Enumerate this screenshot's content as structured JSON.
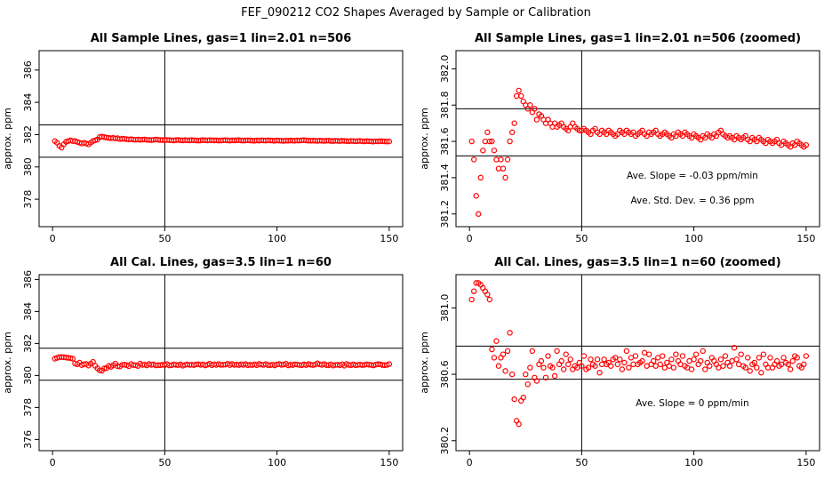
{
  "title": "FEF_090212  CO2 Shapes Averaged by Sample or Calibration",
  "chart_data": [
    {
      "type": "scatter",
      "title": "All Sample Lines, gas=1 lin=2.01 n=506",
      "xlabel": "",
      "ylabel": "approx. ppm",
      "xlim": [
        -6,
        156
      ],
      "ylim": [
        376.3,
        387.2
      ],
      "xticks": [
        0,
        50,
        100,
        150
      ],
      "yticks": [
        378,
        380,
        382,
        384,
        386
      ],
      "vline": 50,
      "hlines": [
        380.6,
        382.6
      ],
      "marker_color": "#ff0000",
      "annotations": [],
      "x": [
        1,
        2,
        3,
        4,
        5,
        6,
        7,
        8,
        9,
        10,
        11,
        12,
        13,
        14,
        15,
        16,
        17,
        18,
        19,
        20,
        21,
        22,
        23,
        24,
        25,
        26,
        27,
        28,
        29,
        30,
        31,
        32,
        33,
        34,
        35,
        36,
        37,
        38,
        39,
        40,
        41,
        42,
        43,
        44,
        45,
        46,
        47,
        48,
        49,
        50,
        51,
        52,
        53,
        54,
        55,
        56,
        57,
        58,
        59,
        60,
        61,
        62,
        63,
        64,
        65,
        66,
        67,
        68,
        69,
        70,
        71,
        72,
        73,
        74,
        75,
        76,
        77,
        78,
        79,
        80,
        81,
        82,
        83,
        84,
        85,
        86,
        87,
        88,
        89,
        90,
        91,
        92,
        93,
        94,
        95,
        96,
        97,
        98,
        99,
        100,
        101,
        102,
        103,
        104,
        105,
        106,
        107,
        108,
        109,
        110,
        111,
        112,
        113,
        114,
        115,
        116,
        117,
        118,
        119,
        120,
        121,
        122,
        123,
        124,
        125,
        126,
        127,
        128,
        129,
        130,
        131,
        132,
        133,
        134,
        135,
        136,
        137,
        138,
        139,
        140,
        141,
        142,
        143,
        144,
        145,
        146,
        147,
        148,
        149,
        150
      ],
      "y": [
        381.6,
        381.5,
        381.3,
        381.2,
        381.4,
        381.55,
        381.6,
        381.65,
        381.6,
        381.6,
        381.55,
        381.5,
        381.45,
        381.5,
        381.45,
        381.4,
        381.5,
        381.6,
        381.65,
        381.7,
        381.85,
        381.88,
        381.85,
        381.82,
        381.8,
        381.78,
        381.8,
        381.76,
        381.78,
        381.72,
        381.75,
        381.74,
        381.72,
        381.7,
        381.72,
        381.7,
        381.68,
        381.7,
        381.68,
        381.69,
        381.7,
        381.68,
        381.67,
        381.66,
        381.68,
        381.7,
        381.68,
        381.67,
        381.66,
        381.66,
        381.67,
        381.66,
        381.65,
        381.64,
        381.66,
        381.67,
        381.65,
        381.64,
        381.66,
        381.65,
        381.64,
        381.66,
        381.65,
        381.64,
        381.63,
        381.64,
        381.66,
        381.65,
        381.64,
        381.66,
        381.65,
        381.64,
        381.65,
        381.63,
        381.64,
        381.65,
        381.66,
        381.64,
        381.63,
        381.65,
        381.64,
        381.65,
        381.66,
        381.64,
        381.63,
        381.64,
        381.65,
        381.64,
        381.63,
        381.62,
        381.64,
        381.63,
        381.65,
        381.64,
        381.63,
        381.65,
        381.64,
        381.63,
        381.62,
        381.64,
        381.63,
        381.62,
        381.61,
        381.63,
        381.62,
        381.64,
        381.63,
        381.62,
        381.64,
        381.63,
        381.65,
        381.66,
        381.64,
        381.63,
        381.62,
        381.63,
        381.62,
        381.61,
        381.63,
        381.62,
        381.61,
        381.62,
        381.63,
        381.61,
        381.6,
        381.62,
        381.61,
        381.6,
        381.62,
        381.61,
        381.6,
        381.59,
        381.61,
        381.6,
        381.59,
        381.6,
        381.61,
        381.59,
        381.58,
        381.6,
        381.59,
        381.58,
        381.57,
        381.59,
        381.58,
        381.6,
        381.59,
        381.58,
        381.57,
        381.58
      ]
    },
    {
      "type": "scatter",
      "title": "All Sample Lines, gas=1 lin=2.01 n=506 (zoomed)",
      "xlabel": "",
      "ylabel": "approx. ppm",
      "xlim": [
        -6,
        156
      ],
      "ylim": [
        381.13,
        382.1
      ],
      "xticks": [
        0,
        50,
        100,
        150
      ],
      "yticks": [
        381.2,
        381.4,
        381.6,
        381.8,
        382.0
      ],
      "ytick_labels": [
        "381.2",
        "381.4",
        "381.6",
        "381.8",
        "382.0"
      ],
      "vline": 50,
      "hlines": [
        381.52,
        381.78
      ],
      "marker_color": "#ff0000",
      "annotations": [
        "Ave. Slope = -0.03  ppm/min",
        "Ave. Std. Dev. = 0.36  ppm"
      ],
      "x": [
        1,
        2,
        3,
        4,
        5,
        6,
        7,
        8,
        9,
        10,
        11,
        12,
        13,
        14,
        15,
        16,
        17,
        18,
        19,
        20,
        21,
        22,
        23,
        24,
        25,
        26,
        27,
        28,
        29,
        30,
        31,
        32,
        33,
        34,
        35,
        36,
        37,
        38,
        39,
        40,
        41,
        42,
        43,
        44,
        45,
        46,
        47,
        48,
        49,
        50,
        51,
        52,
        53,
        54,
        55,
        56,
        57,
        58,
        59,
        60,
        61,
        62,
        63,
        64,
        65,
        66,
        67,
        68,
        69,
        70,
        71,
        72,
        73,
        74,
        75,
        76,
        77,
        78,
        79,
        80,
        81,
        82,
        83,
        84,
        85,
        86,
        87,
        88,
        89,
        90,
        91,
        92,
        93,
        94,
        95,
        96,
        97,
        98,
        99,
        100,
        101,
        102,
        103,
        104,
        105,
        106,
        107,
        108,
        109,
        110,
        111,
        112,
        113,
        114,
        115,
        116,
        117,
        118,
        119,
        120,
        121,
        122,
        123,
        124,
        125,
        126,
        127,
        128,
        129,
        130,
        131,
        132,
        133,
        134,
        135,
        136,
        137,
        138,
        139,
        140,
        141,
        142,
        143,
        144,
        145,
        146,
        147,
        148,
        149,
        150
      ],
      "y": [
        381.6,
        381.5,
        381.3,
        381.2,
        381.4,
        381.55,
        381.6,
        381.65,
        381.6,
        381.6,
        381.55,
        381.5,
        381.45,
        381.5,
        381.45,
        381.4,
        381.5,
        381.6,
        381.65,
        381.7,
        381.85,
        381.88,
        381.85,
        381.82,
        381.8,
        381.78,
        381.8,
        381.76,
        381.78,
        381.72,
        381.75,
        381.74,
        381.72,
        381.7,
        381.72,
        381.7,
        381.68,
        381.7,
        381.68,
        381.69,
        381.7,
        381.68,
        381.67,
        381.66,
        381.68,
        381.7,
        381.68,
        381.67,
        381.66,
        381.66,
        381.67,
        381.66,
        381.65,
        381.64,
        381.66,
        381.67,
        381.65,
        381.64,
        381.66,
        381.65,
        381.64,
        381.66,
        381.65,
        381.64,
        381.63,
        381.64,
        381.66,
        381.65,
        381.64,
        381.66,
        381.65,
        381.64,
        381.65,
        381.63,
        381.64,
        381.65,
        381.66,
        381.64,
        381.63,
        381.65,
        381.64,
        381.65,
        381.66,
        381.64,
        381.63,
        381.64,
        381.65,
        381.64,
        381.63,
        381.62,
        381.64,
        381.63,
        381.65,
        381.64,
        381.63,
        381.65,
        381.64,
        381.63,
        381.62,
        381.64,
        381.63,
        381.62,
        381.61,
        381.63,
        381.62,
        381.64,
        381.63,
        381.62,
        381.64,
        381.63,
        381.65,
        381.66,
        381.64,
        381.63,
        381.62,
        381.63,
        381.62,
        381.61,
        381.63,
        381.62,
        381.61,
        381.62,
        381.63,
        381.61,
        381.6,
        381.62,
        381.61,
        381.6,
        381.62,
        381.61,
        381.6,
        381.59,
        381.61,
        381.6,
        381.59,
        381.6,
        381.61,
        381.59,
        381.58,
        381.6,
        381.59,
        381.58,
        381.57,
        381.59,
        381.58,
        381.6,
        381.59,
        381.58,
        381.57,
        381.58
      ]
    },
    {
      "type": "scatter",
      "title": "All Cal. Lines, gas=3.5 lin=1 n=60",
      "xlabel": "",
      "ylabel": "approx. ppm",
      "xlim": [
        -6,
        156
      ],
      "ylim": [
        375.3,
        386.3
      ],
      "xticks": [
        0,
        50,
        100,
        150
      ],
      "yticks": [
        376,
        378,
        380,
        382,
        384,
        386
      ],
      "vline": 50,
      "hlines": [
        379.7,
        381.7
      ],
      "marker_color": "#ff0000",
      "annotations": [],
      "x": [
        1,
        2,
        3,
        4,
        5,
        6,
        7,
        8,
        9,
        10,
        11,
        12,
        13,
        14,
        15,
        16,
        17,
        18,
        19,
        20,
        21,
        22,
        23,
        24,
        25,
        26,
        27,
        28,
        29,
        30,
        31,
        32,
        33,
        34,
        35,
        36,
        37,
        38,
        39,
        40,
        41,
        42,
        43,
        44,
        45,
        46,
        47,
        48,
        49,
        50,
        51,
        52,
        53,
        54,
        55,
        56,
        57,
        58,
        59,
        60,
        61,
        62,
        63,
        64,
        65,
        66,
        67,
        68,
        69,
        70,
        71,
        72,
        73,
        74,
        75,
        76,
        77,
        78,
        79,
        80,
        81,
        82,
        83,
        84,
        85,
        86,
        87,
        88,
        89,
        90,
        91,
        92,
        93,
        94,
        95,
        96,
        97,
        98,
        99,
        100,
        101,
        102,
        103,
        104,
        105,
        106,
        107,
        108,
        109,
        110,
        111,
        112,
        113,
        114,
        115,
        116,
        117,
        118,
        119,
        120,
        121,
        122,
        123,
        124,
        125,
        126,
        127,
        128,
        129,
        130,
        131,
        132,
        133,
        134,
        135,
        136,
        137,
        138,
        139,
        140,
        141,
        142,
        143,
        144,
        145,
        146,
        147,
        148,
        149,
        150
      ],
      "y": [
        381.05,
        381.1,
        381.15,
        381.15,
        381.14,
        381.12,
        381.1,
        381.08,
        381.05,
        380.75,
        380.7,
        380.8,
        380.65,
        380.7,
        380.72,
        380.62,
        380.74,
        380.85,
        380.6,
        380.45,
        380.32,
        380.3,
        380.44,
        380.46,
        380.6,
        380.54,
        380.64,
        380.74,
        380.58,
        380.56,
        380.66,
        380.68,
        380.64,
        380.58,
        380.71,
        380.65,
        380.64,
        380.59,
        380.74,
        380.66,
        380.68,
        380.63,
        380.72,
        380.66,
        380.69,
        380.63,
        380.65,
        380.64,
        380.67,
        380.65,
        380.71,
        380.63,
        380.64,
        380.69,
        380.66,
        380.65,
        380.69,
        380.61,
        380.66,
        380.69,
        380.66,
        380.67,
        380.65,
        380.69,
        380.7,
        380.66,
        380.69,
        380.63,
        380.67,
        380.74,
        380.64,
        380.7,
        380.66,
        380.71,
        380.66,
        380.67,
        380.68,
        380.73,
        380.65,
        380.72,
        380.66,
        380.68,
        380.65,
        380.7,
        380.66,
        380.71,
        380.64,
        380.67,
        380.65,
        380.69,
        380.64,
        380.72,
        380.68,
        380.66,
        380.71,
        380.65,
        380.64,
        380.68,
        380.63,
        380.69,
        380.72,
        380.66,
        380.68,
        380.74,
        380.63,
        380.67,
        380.65,
        380.7,
        380.68,
        380.66,
        380.64,
        380.69,
        380.65,
        380.71,
        380.67,
        380.65,
        380.68,
        380.76,
        380.69,
        380.66,
        380.72,
        380.65,
        380.64,
        380.7,
        380.62,
        380.66,
        380.67,
        380.64,
        380.7,
        380.61,
        380.72,
        380.66,
        380.64,
        380.7,
        380.64,
        380.66,
        380.68,
        380.65,
        380.66,
        380.7,
        380.67,
        380.66,
        380.63,
        380.68,
        380.71,
        380.7,
        380.65,
        380.64,
        380.66,
        380.71
      ]
    },
    {
      "type": "scatter",
      "title": "All Cal. Lines, gas=3.5 lin=1 n=60 (zoomed)",
      "xlabel": "",
      "ylabel": "approx. ppm",
      "xlim": [
        -6,
        156
      ],
      "ylim": [
        380.14,
        381.2
      ],
      "xticks": [
        0,
        50,
        100,
        150
      ],
      "yticks": [
        380.2,
        380.6,
        381.0
      ],
      "ytick_labels": [
        "380.2",
        "380.6",
        "381.0"
      ],
      "vline": 50,
      "hlines": [
        380.57,
        380.77
      ],
      "marker_color": "#ff0000",
      "annotations": [
        "Ave. Slope = 0  ppm/min"
      ],
      "x": [
        1,
        2,
        3,
        4,
        5,
        6,
        7,
        8,
        9,
        10,
        11,
        12,
        13,
        14,
        15,
        16,
        17,
        18,
        19,
        20,
        21,
        22,
        23,
        24,
        25,
        26,
        27,
        28,
        29,
        30,
        31,
        32,
        33,
        34,
        35,
        36,
        37,
        38,
        39,
        40,
        41,
        42,
        43,
        44,
        45,
        46,
        47,
        48,
        49,
        50,
        51,
        52,
        53,
        54,
        55,
        56,
        57,
        58,
        59,
        60,
        61,
        62,
        63,
        64,
        65,
        66,
        67,
        68,
        69,
        70,
        71,
        72,
        73,
        74,
        75,
        76,
        77,
        78,
        79,
        80,
        81,
        82,
        83,
        84,
        85,
        86,
        87,
        88,
        89,
        90,
        91,
        92,
        93,
        94,
        95,
        96,
        97,
        98,
        99,
        100,
        101,
        102,
        103,
        104,
        105,
        106,
        107,
        108,
        109,
        110,
        111,
        112,
        113,
        114,
        115,
        116,
        117,
        118,
        119,
        120,
        121,
        122,
        123,
        124,
        125,
        126,
        127,
        128,
        129,
        130,
        131,
        132,
        133,
        134,
        135,
        136,
        137,
        138,
        139,
        140,
        141,
        142,
        143,
        144,
        145,
        146,
        147,
        148,
        149,
        150
      ],
      "y": [
        381.05,
        381.1,
        381.15,
        381.15,
        381.14,
        381.12,
        381.1,
        381.08,
        381.05,
        380.75,
        380.7,
        380.8,
        380.65,
        380.7,
        380.72,
        380.62,
        380.74,
        380.85,
        380.6,
        380.45,
        380.32,
        380.3,
        380.44,
        380.46,
        380.6,
        380.54,
        380.64,
        380.74,
        380.58,
        380.56,
        380.66,
        380.68,
        380.64,
        380.58,
        380.71,
        380.65,
        380.64,
        380.59,
        380.74,
        380.66,
        380.68,
        380.63,
        380.72,
        380.66,
        380.69,
        380.63,
        380.65,
        380.64,
        380.67,
        380.65,
        380.71,
        380.63,
        380.64,
        380.69,
        380.66,
        380.65,
        380.69,
        380.61,
        380.66,
        380.69,
        380.66,
        380.67,
        380.65,
        380.69,
        380.7,
        380.66,
        380.69,
        380.63,
        380.67,
        380.74,
        380.64,
        380.7,
        380.66,
        380.71,
        380.66,
        380.67,
        380.68,
        380.73,
        380.65,
        380.72,
        380.66,
        380.68,
        380.65,
        380.7,
        380.66,
        380.71,
        380.64,
        380.67,
        380.65,
        380.69,
        380.64,
        380.72,
        380.68,
        380.66,
        380.71,
        380.65,
        380.64,
        380.68,
        380.63,
        380.69,
        380.72,
        380.66,
        380.68,
        380.74,
        380.63,
        380.67,
        380.65,
        380.7,
        380.68,
        380.66,
        380.64,
        380.69,
        380.65,
        380.71,
        380.67,
        380.65,
        380.68,
        380.76,
        380.69,
        380.66,
        380.72,
        380.65,
        380.64,
        380.7,
        380.62,
        380.66,
        380.67,
        380.64,
        380.7,
        380.61,
        380.72,
        380.66,
        380.64,
        380.7,
        380.64,
        380.66,
        380.68,
        380.65,
        380.66,
        380.7,
        380.67,
        380.66,
        380.63,
        380.68,
        380.71,
        380.7,
        380.65,
        380.64,
        380.66,
        380.71
      ]
    }
  ]
}
